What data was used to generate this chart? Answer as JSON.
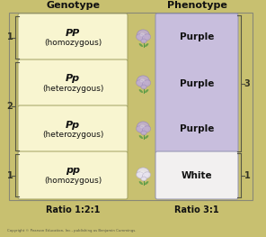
{
  "title_genotype": "Genotype",
  "title_phenotype": "Phenotype",
  "bg_color": "#f8f5d0",
  "phenotype_purple_color": "#c8bedd",
  "phenotype_white_color": "#f2f0f0",
  "outer_bg": "#c8c070",
  "genotype_rows": [
    {
      "label_italic": "PP",
      "label_normal": "(homozygous)"
    },
    {
      "label_italic": "Pp",
      "label_normal": "(heterozygous)"
    },
    {
      "label_italic": "Pp",
      "label_normal": "(heterozygous)"
    },
    {
      "label_italic": "pp",
      "label_normal": "(homozygous)"
    }
  ],
  "phenotype_labels": [
    "Purple",
    "Purple",
    "Purple",
    "White"
  ],
  "ratio_genotype": "Ratio 1:2:1",
  "ratio_phenotype": "Ratio 3:1",
  "copyright": "Copyright © Pearson Education, Inc., publishing as Benjamin Cummings.",
  "left_ratios": [
    "1",
    "2",
    "1"
  ],
  "right_ratios": [
    "3",
    "1"
  ],
  "flower_purple": "#c0aed0",
  "flower_purple_edge": "#9888b8",
  "flower_white": "#e8e4f0",
  "flower_white_edge": "#b0a8c0",
  "stem_color": "#559944"
}
